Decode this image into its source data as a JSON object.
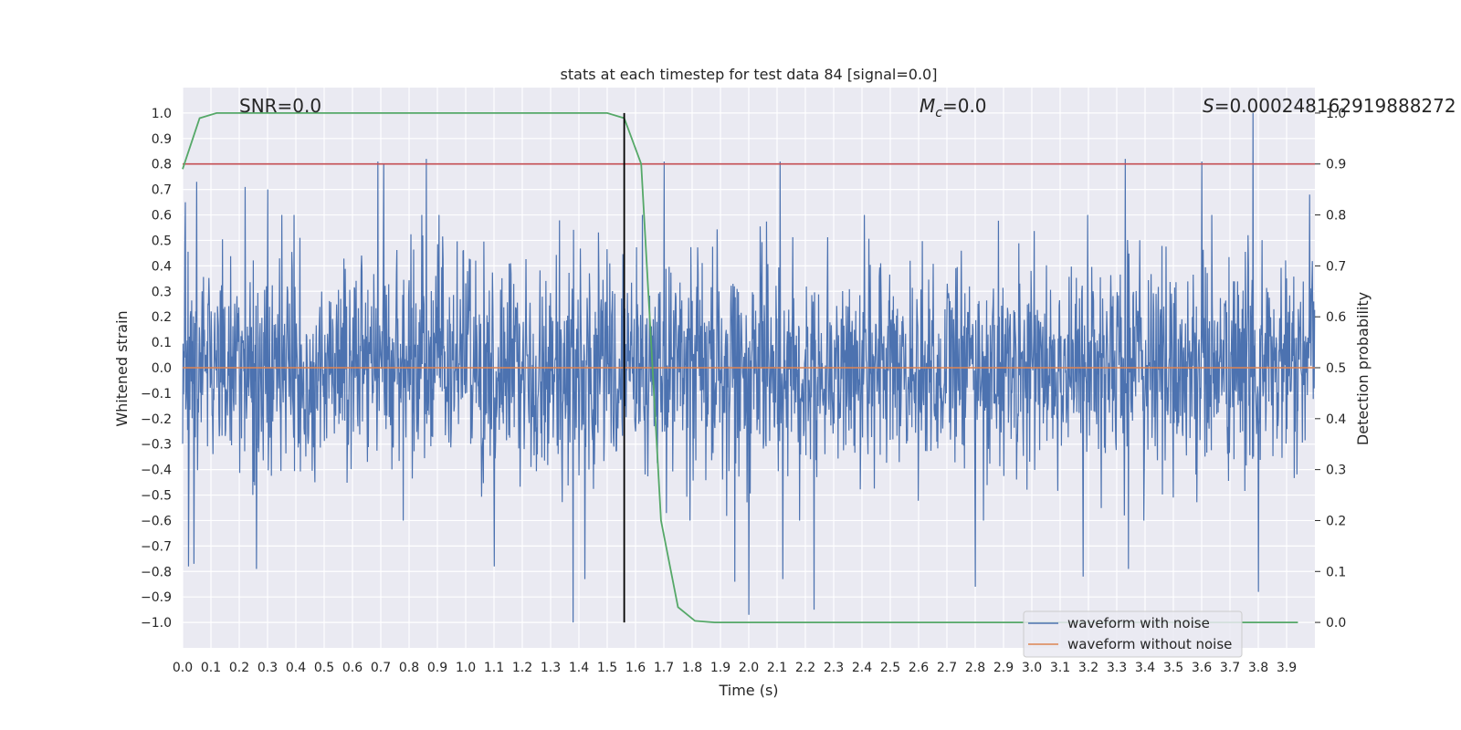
{
  "chart_data": {
    "type": "line",
    "title": "stats at each timestep for test data 84 [signal=0.0]",
    "xlabel": "Time (s)",
    "ylabel_left": "Whitened strain",
    "ylabel_right": "Detection probability",
    "xlim": [
      0.0,
      4.0
    ],
    "ylim_left": [
      -1.1,
      1.1
    ],
    "ylim_right": [
      -0.05,
      1.05
    ],
    "x_ticks": [
      0.0,
      0.1,
      0.2,
      0.3,
      0.4,
      0.5,
      0.6,
      0.7,
      0.8,
      0.9,
      1.0,
      1.1,
      1.2,
      1.3,
      1.4,
      1.5,
      1.6,
      1.7,
      1.8,
      1.9,
      2.0,
      2.1,
      2.2,
      2.3,
      2.4,
      2.5,
      2.6,
      2.7,
      2.8,
      2.9,
      3.0,
      3.1,
      3.2,
      3.3,
      3.4,
      3.5,
      3.6,
      3.7,
      3.8,
      3.9
    ],
    "y_ticks_left": [
      1.0,
      0.9,
      0.8,
      0.7,
      0.6,
      0.5,
      0.4,
      0.3,
      0.2,
      0.1,
      0.0,
      -0.1,
      -0.2,
      -0.3,
      -0.4,
      -0.5,
      -0.6,
      -0.7,
      -0.8,
      -0.9,
      -1.0
    ],
    "y_ticks_right": [
      1.0,
      0.9,
      0.8,
      0.7,
      0.6,
      0.5,
      0.4,
      0.3,
      0.2,
      0.1,
      0.0
    ],
    "grid": true,
    "annotations": {
      "snr": "SNR=0.0",
      "mc_symbol": "M",
      "mc_sub": "c",
      "mc_value": "=0.0",
      "s_symbol": "S",
      "s_value": "=0.000248162919888272"
    },
    "series": [
      {
        "name": "waveform with noise",
        "axis": "left",
        "color": "#4c72b0",
        "description_values": "dense whitened-strain noise, amplitude mostly within ±0.6, spikes to 1.0 and -1.0",
        "envelope_peaks": [
          [
            0.01,
            0.65
          ],
          [
            0.05,
            0.73
          ],
          [
            0.22,
            0.71
          ],
          [
            0.3,
            0.7
          ],
          [
            0.35,
            0.6
          ],
          [
            0.69,
            0.81
          ],
          [
            0.71,
            0.8
          ],
          [
            0.86,
            0.82
          ],
          [
            1.7,
            0.81
          ],
          [
            2.11,
            0.81
          ],
          [
            2.8,
            0.76
          ],
          [
            3.33,
            0.82
          ],
          [
            3.6,
            0.81
          ],
          [
            3.78,
            1.0
          ],
          [
            3.98,
            0.68
          ],
          [
            0.02,
            -0.78
          ],
          [
            0.04,
            -0.77
          ],
          [
            0.26,
            -0.79
          ],
          [
            1.1,
            -0.78
          ],
          [
            1.38,
            -1.0
          ],
          [
            1.42,
            -0.83
          ],
          [
            1.95,
            -0.84
          ],
          [
            2.0,
            -0.97
          ],
          [
            2.12,
            -0.83
          ],
          [
            2.23,
            -0.95
          ],
          [
            2.8,
            -0.86
          ],
          [
            3.18,
            -0.82
          ],
          [
            3.34,
            -0.79
          ],
          [
            3.8,
            -0.88
          ]
        ]
      },
      {
        "name": "waveform without noise",
        "axis": "left",
        "color": "#dd8452",
        "x": [
          0.0,
          4.0
        ],
        "y": [
          0.0,
          0.0
        ]
      },
      {
        "name": "detection probability",
        "axis": "right",
        "color": "#55a868",
        "x": [
          0.0,
          0.06,
          0.12,
          0.19,
          1.5,
          1.56,
          1.62,
          1.69,
          1.75,
          1.81,
          1.88,
          3.94
        ],
        "y": [
          0.89,
          0.99,
          1.0,
          1.0,
          1.0,
          0.99,
          0.9,
          0.2,
          0.03,
          0.003,
          0.0,
          0.0
        ]
      }
    ],
    "hlines": [
      {
        "axis": "right",
        "y": 0.9,
        "color": "#c44e52"
      }
    ],
    "vlines": [
      {
        "x": 1.56,
        "color": "#000000"
      }
    ],
    "legend": {
      "placement": "lower-right",
      "entries": [
        "waveform with noise",
        "waveform without noise"
      ]
    }
  }
}
